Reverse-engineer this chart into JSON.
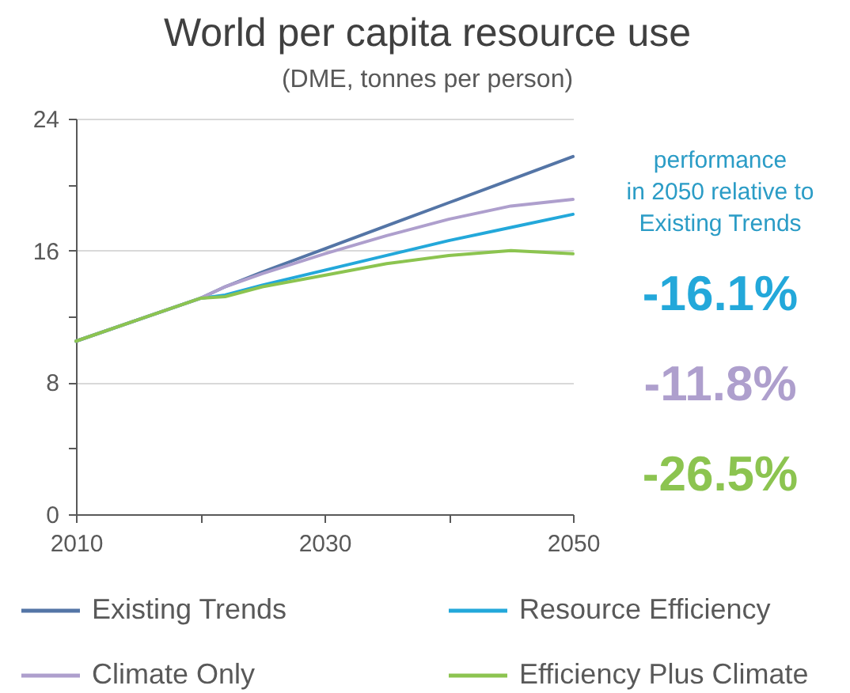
{
  "chart_data": {
    "type": "line",
    "title": "World per capita resource use",
    "subtitle": "(DME, tonnes per person)",
    "x": [
      2010,
      2015,
      2020,
      2022,
      2025,
      2030,
      2035,
      2040,
      2045,
      2050
    ],
    "series": [
      {
        "name": "Existing Trends",
        "color": "#5475a6",
        "values": [
          10.5,
          11.8,
          13.1,
          13.8,
          14.7,
          16.1,
          17.5,
          18.9,
          20.3,
          21.7
        ]
      },
      {
        "name": "Resource Efficiency",
        "color": "#23a8da",
        "values": [
          10.5,
          11.8,
          13.1,
          13.3,
          13.9,
          14.8,
          15.7,
          16.6,
          17.4,
          18.2
        ]
      },
      {
        "name": "Climate Only",
        "color": "#ae9fcd",
        "values": [
          10.5,
          11.8,
          13.1,
          13.8,
          14.6,
          15.8,
          16.9,
          17.9,
          18.7,
          19.1
        ]
      },
      {
        "name": "Efficiency Plus Climate",
        "color": "#8cc450",
        "values": [
          10.5,
          11.8,
          13.1,
          13.2,
          13.8,
          14.5,
          15.2,
          15.7,
          16.0,
          15.8
        ]
      }
    ],
    "xlim": [
      2010,
      2050
    ],
    "xticks": [
      2010,
      {
        "value": 2020,
        "label": null
      },
      2030,
      {
        "value": 2040,
        "label": null
      },
      2050
    ],
    "ylim": [
      0,
      24
    ],
    "yticks": [
      0,
      {
        "value": 4,
        "label": null
      },
      8,
      {
        "value": 12,
        "label": null
      },
      16,
      {
        "value": 20,
        "label": null
      },
      24
    ],
    "grid": "y",
    "legend": "bottom",
    "annotations": [
      "performance\nin 2050 relative to\nExisting Trends",
      "-16.1%",
      "-11.8%",
      "-26.5%"
    ]
  }
}
